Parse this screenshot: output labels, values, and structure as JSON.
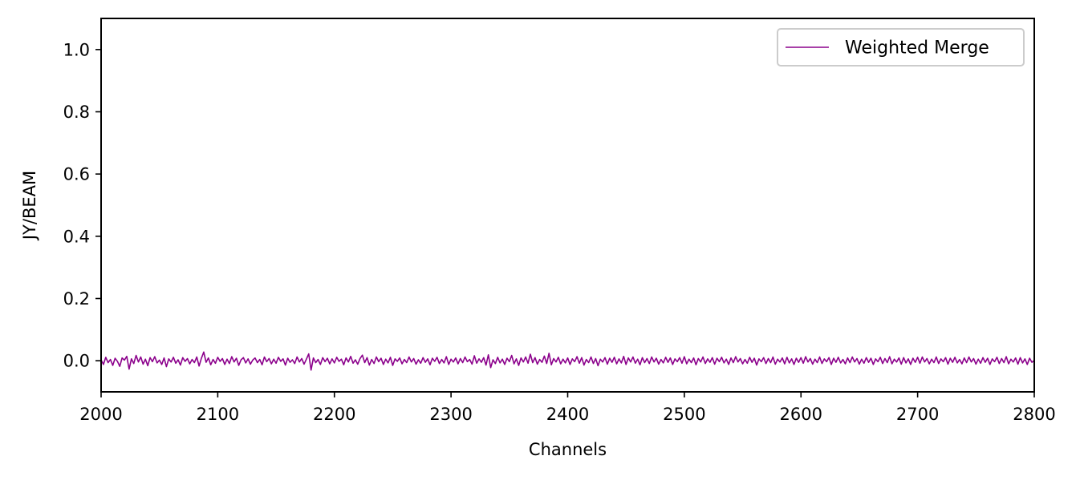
{
  "chart_data": {
    "type": "line",
    "title": "",
    "xlabel": "Channels",
    "ylabel": "JY/BEAM",
    "xlim": [
      2000,
      2800
    ],
    "ylim": [
      -0.1,
      1.1
    ],
    "xticks": [
      2000,
      2100,
      2200,
      2300,
      2400,
      2500,
      2600,
      2700,
      2800
    ],
    "xtick_labels": [
      "2000",
      "2100",
      "2200",
      "2300",
      "2400",
      "2500",
      "2600",
      "2700",
      "2800"
    ],
    "yticks": [
      0.0,
      0.2,
      0.4,
      0.6,
      0.8,
      1.0
    ],
    "ytick_labels": [
      "0.0",
      "0.2",
      "0.4",
      "0.6",
      "0.8",
      "1.0"
    ],
    "grid": false,
    "legend_position": "top-right",
    "series": [
      {
        "name": "Weighted Merge",
        "color": "#8b008b",
        "x_start": 2000,
        "x_step": 2,
        "values": [
          0.003,
          -0.012,
          0.011,
          -0.006,
          0.004,
          -0.015,
          0.008,
          -0.002,
          -0.018,
          0.009,
          0.002,
          0.014,
          -0.027,
          0.006,
          -0.009,
          0.017,
          -0.004,
          0.012,
          -0.011,
          0.005,
          -0.016,
          0.01,
          -0.003,
          0.013,
          -0.007,
          0.002,
          -0.012,
          0.009,
          -0.019,
          0.006,
          -0.004,
          0.011,
          -0.008,
          0.003,
          -0.014,
          0.01,
          -0.002,
          0.007,
          -0.01,
          0.004,
          -0.006,
          0.012,
          -0.017,
          0.008,
          0.028,
          -0.005,
          0.009,
          -0.013,
          0.004,
          -0.008,
          0.011,
          -0.002,
          0.007,
          -0.012,
          0.005,
          -0.009,
          0.013,
          -0.004,
          0.008,
          -0.015,
          0.003,
          0.01,
          -0.007,
          0.006,
          -0.011,
          0.002,
          0.009,
          -0.006,
          0.004,
          -0.013,
          0.012,
          -0.003,
          0.007,
          -0.01,
          0.005,
          -0.008,
          0.011,
          -0.002,
          0.006,
          -0.014,
          0.008,
          -0.005,
          0.003,
          -0.009,
          0.012,
          -0.004,
          0.007,
          -0.011,
          0.005,
          0.022,
          -0.03,
          0.009,
          -0.006,
          0.004,
          -0.012,
          0.01,
          -0.003,
          0.008,
          -0.01,
          0.006,
          -0.007,
          0.011,
          -0.002,
          0.005,
          -0.013,
          0.009,
          -0.004,
          0.014,
          -0.008,
          0.003,
          -0.011,
          0.007,
          0.018,
          -0.006,
          0.01,
          -0.014,
          0.004,
          -0.009,
          0.012,
          -0.003,
          0.008,
          -0.012,
          0.005,
          -0.007,
          0.011,
          -0.015,
          0.006,
          -0.002,
          0.009,
          -0.01,
          0.004,
          -0.006,
          0.012,
          -0.004,
          0.007,
          -0.011,
          0.003,
          -0.008,
          0.01,
          -0.005,
          0.006,
          -0.013,
          0.008,
          -0.002,
          0.011,
          -0.009,
          0.004,
          -0.007,
          0.013,
          -0.012,
          0.005,
          -0.004,
          0.009,
          -0.01,
          0.007,
          -0.006,
          0.012,
          -0.003,
          0.004,
          -0.011,
          0.016,
          -0.008,
          0.006,
          -0.005,
          0.01,
          -0.014,
          0.019,
          -0.022,
          0.003,
          -0.009,
          0.011,
          -0.007,
          0.005,
          -0.012,
          0.008,
          -0.003,
          0.017,
          -0.01,
          0.006,
          -0.015,
          0.009,
          -0.004,
          0.012,
          -0.008,
          0.021,
          -0.006,
          0.01,
          -0.011,
          0.004,
          -0.005,
          0.015,
          -0.009,
          0.024,
          -0.013,
          0.007,
          -0.004,
          0.011,
          -0.01,
          0.005,
          -0.007,
          0.009,
          -0.012,
          0.006,
          -0.003,
          0.013,
          -0.008,
          0.01,
          -0.014,
          0.004,
          -0.006,
          0.012,
          -0.009,
          0.007,
          -0.016,
          0.005,
          -0.004,
          0.01,
          -0.011,
          0.008,
          -0.005,
          0.011,
          -0.01,
          0.006,
          -0.007,
          0.014,
          -0.012,
          0.009,
          -0.004,
          0.012,
          -0.008,
          0.005,
          -0.013,
          0.01,
          -0.006,
          0.007,
          -0.009,
          0.012,
          -0.004,
          0.008,
          -0.011,
          0.004,
          -0.007,
          0.011,
          -0.005,
          0.009,
          -0.012,
          0.006,
          -0.003,
          0.01,
          -0.008,
          0.013,
          -0.01,
          0.005,
          -0.006,
          0.009,
          -0.013,
          0.007,
          -0.004,
          0.012,
          -0.009,
          0.006,
          -0.005,
          0.01,
          -0.011,
          0.008,
          -0.003,
          0.011,
          -0.007,
          0.005,
          -0.012,
          0.009,
          -0.006,
          0.013,
          -0.004,
          0.007,
          -0.01,
          0.004,
          -0.008,
          0.011,
          -0.005,
          0.008,
          -0.014,
          0.006,
          -0.003,
          0.01,
          -0.009,
          0.007,
          -0.006,
          0.012,
          -0.011,
          0.005,
          -0.004,
          0.009,
          -0.01,
          0.011,
          -0.007,
          0.006,
          -0.012,
          0.008,
          -0.005,
          0.01,
          -0.008,
          0.013,
          -0.004,
          0.007,
          -0.011,
          0.005,
          -0.006,
          0.012,
          -0.009,
          0.006,
          -0.003,
          0.01,
          -0.012,
          0.008,
          -0.005,
          0.011,
          -0.007,
          0.004,
          -0.01,
          0.009,
          -0.006,
          0.012,
          -0.004,
          0.007,
          -0.011,
          0.005,
          -0.008,
          0.01,
          -0.005,
          0.008,
          -0.012,
          0.006,
          -0.003,
          0.011,
          -0.009,
          0.007,
          -0.006,
          0.013,
          -0.01,
          0.005,
          -0.004,
          0.009,
          -0.011,
          0.01,
          -0.007,
          0.006,
          -0.012,
          0.008,
          -0.005,
          0.011,
          -0.008,
          0.012,
          -0.004,
          0.007,
          -0.01,
          0.005,
          -0.006,
          0.012,
          -0.009,
          0.006,
          -0.003,
          0.01,
          -0.011,
          0.008,
          -0.005,
          0.011,
          -0.007,
          0.004,
          -0.01,
          0.009,
          -0.006,
          0.012,
          -0.004,
          0.007,
          -0.011,
          0.005,
          -0.008,
          0.01,
          -0.005,
          0.008,
          -0.012,
          0.006,
          -0.003,
          0.011,
          -0.009,
          0.007,
          -0.006,
          0.013,
          -0.01,
          0.005,
          -0.004,
          0.009,
          -0.011,
          0.01,
          -0.007,
          0.006,
          -0.012,
          0.008,
          -0.005,
          0.001
        ]
      }
    ]
  }
}
